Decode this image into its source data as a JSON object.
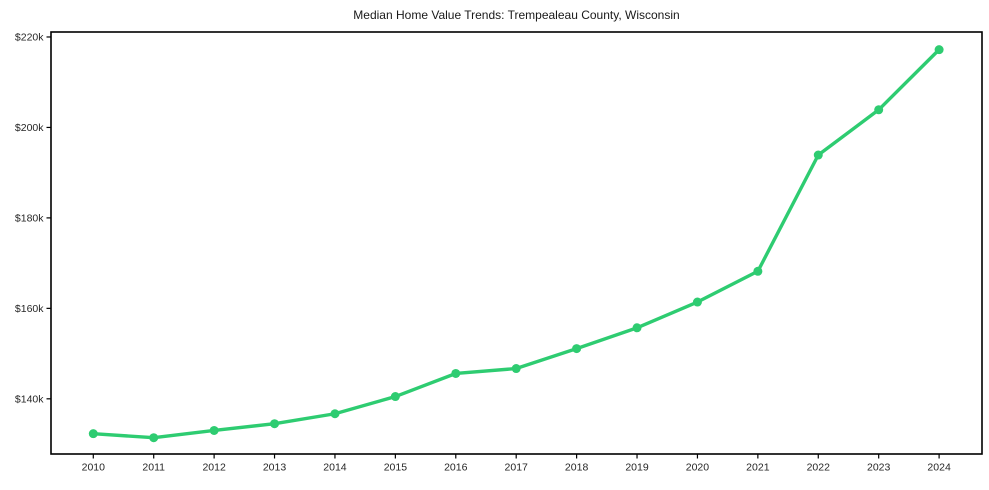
{
  "chart_data": {
    "type": "line",
    "title": "Median Home Value Trends: Trempealeau County, Wisconsin",
    "x": [
      2010,
      2011,
      2012,
      2013,
      2014,
      2015,
      2016,
      2017,
      2018,
      2019,
      2020,
      2021,
      2022,
      2023,
      2024
    ],
    "series": [
      {
        "name": "Median Home Value",
        "values": [
          132300,
          131400,
          133000,
          134500,
          136700,
          140500,
          145600,
          146700,
          151100,
          155700,
          161400,
          168200,
          193900,
          203900,
          217200
        ]
      }
    ],
    "xlabel": "",
    "ylabel": "",
    "xlim": [
      2009.3,
      2024.71
    ],
    "ylim": [
      127800,
      221100
    ],
    "xticks": {
      "values": [
        2010,
        2011,
        2012,
        2013,
        2014,
        2015,
        2016,
        2017,
        2018,
        2019,
        2020,
        2021,
        2022,
        2023,
        2024
      ],
      "labels": [
        "2010",
        "2011",
        "2012",
        "2013",
        "2014",
        "2015",
        "2016",
        "2017",
        "2018",
        "2019",
        "2020",
        "2021",
        "2022",
        "2023",
        "2024"
      ]
    },
    "yticks": {
      "values": [
        140000,
        160000,
        180000,
        200000,
        220000
      ],
      "labels": [
        "$140k",
        "$160k",
        "$180k",
        "$200k",
        "$220k"
      ]
    },
    "grid": false,
    "legend": "none",
    "colors": {
      "line": "#2ecc71",
      "marker": "#2ecc71",
      "frame": "#000000",
      "tick": "#000000",
      "tick_label": "#262626",
      "title": "#1a1a1a",
      "background": "#ffffff"
    },
    "style": {
      "line_width": 3.4,
      "marker_radius": 4.5,
      "frame_width": 1.6,
      "tick_length": 4.5,
      "tick_width": 1.2
    }
  }
}
